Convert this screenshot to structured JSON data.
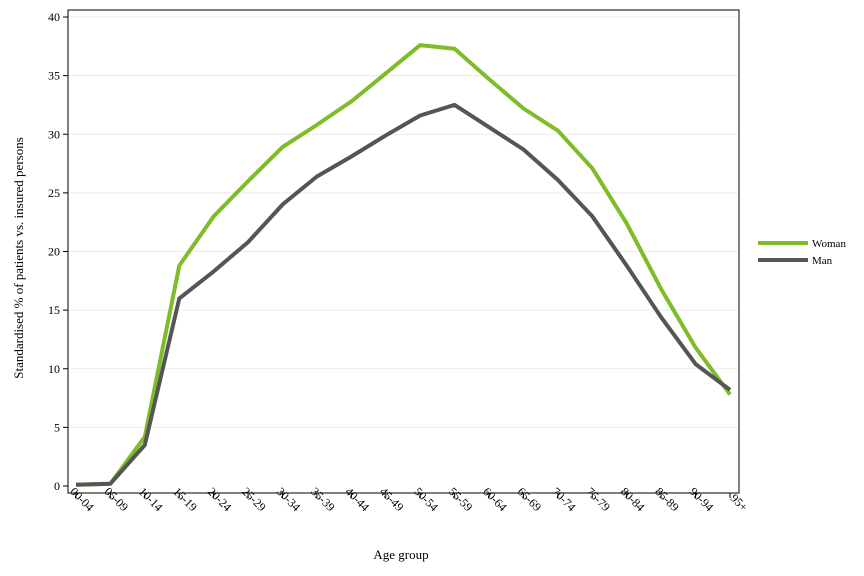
{
  "chart_data": {
    "type": "line",
    "title": "",
    "xlabel": "Age group",
    "ylabel": "Standardised % of patients vs. insured persons",
    "ylim": [
      0,
      40
    ],
    "yticks": [
      0,
      5,
      10,
      15,
      20,
      25,
      30,
      35,
      40
    ],
    "grid": true,
    "legend_position": "right",
    "categories": [
      "00-04",
      "05-09",
      "10-14",
      "15-19",
      "20-24",
      "25-29",
      "30-34",
      "35-39",
      "40-44",
      "45-49",
      "50-54",
      "55-59",
      "60-64",
      "65-69",
      "70-74",
      "75-79",
      "80-84",
      "85-89",
      "90-94",
      "95+"
    ],
    "series": [
      {
        "name": "Woman",
        "color": "#7cbd28",
        "values": [
          0.1,
          0.2,
          4.2,
          18.8,
          23.0,
          26.0,
          28.9,
          30.8,
          32.8,
          35.2,
          37.6,
          37.3,
          34.7,
          32.2,
          30.3,
          27.1,
          22.4,
          16.8,
          11.8,
          7.8
        ]
      },
      {
        "name": "Man",
        "color": "#555555",
        "values": [
          0.1,
          0.2,
          3.5,
          16.0,
          18.3,
          20.8,
          24.0,
          26.4,
          28.1,
          29.9,
          31.6,
          32.5,
          30.6,
          28.7,
          26.1,
          23.0,
          18.8,
          14.4,
          10.4,
          8.2
        ]
      }
    ]
  }
}
